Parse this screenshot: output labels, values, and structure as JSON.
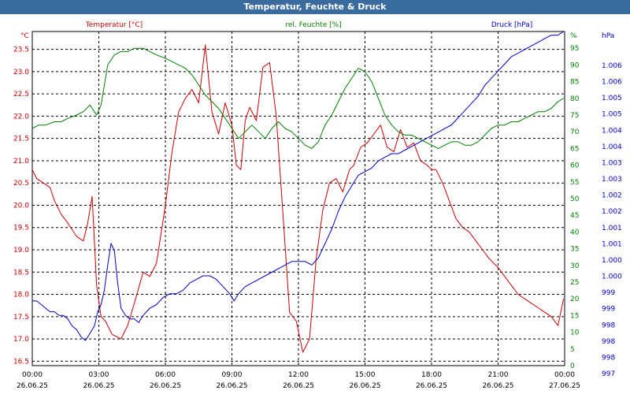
{
  "window": {
    "title": "Temperatur, Feuchte & Druck"
  },
  "colors": {
    "temperature": "#cc0000",
    "humidity": "#008000",
    "pressure": "#0000cc",
    "grid": "#000000",
    "titlebar": "#3a6b9e"
  },
  "chart_data": {
    "type": "line",
    "title": "Temperatur, Feuchte & Druck",
    "x_ticks": [
      {
        "time": "00:00",
        "date": "26.06.25"
      },
      {
        "time": "03:00",
        "date": "26.06.25"
      },
      {
        "time": "06:00",
        "date": "26.06.25"
      },
      {
        "time": "09:00",
        "date": "26.06.25"
      },
      {
        "time": "12:00",
        "date": "26.06.25"
      },
      {
        "time": "15:00",
        "date": "26.06.25"
      },
      {
        "time": "18:00",
        "date": "26.06.25"
      },
      {
        "time": "21:00",
        "date": "26.06.25"
      },
      {
        "time": "00:00",
        "date": "27.06.25"
      }
    ],
    "x_range_hours": [
      0,
      24
    ],
    "grid": true,
    "axes": {
      "temperature": {
        "label": "Temperatur [°C]",
        "unit": "°C",
        "range": [
          16.4,
          23.9
        ],
        "ticks": [
          "16.5",
          "17.0",
          "17.5",
          "18.0",
          "18.5",
          "19.0",
          "19.5",
          "20.0",
          "20.5",
          "21.0",
          "21.5",
          "22.0",
          "22.5",
          "23.0",
          "23.5"
        ]
      },
      "humidity": {
        "label": "rel. Feuchte [%]",
        "unit": "%",
        "range": [
          0,
          100
        ],
        "ticks": [
          "0",
          "5",
          "10",
          "15",
          "20",
          "25",
          "30",
          "35",
          "40",
          "45",
          "50",
          "55",
          "60",
          "65",
          "70",
          "75",
          "80",
          "85",
          "90",
          "95"
        ]
      },
      "pressure": {
        "label": "Druck [hPa]",
        "unit": "hPa",
        "range": [
          997,
          1006.3
        ],
        "ticks": [
          "997",
          "998",
          "998",
          "998",
          "999",
          "999",
          "1.000",
          "1.000",
          "1.001",
          "1.001",
          "1.002",
          "1.002",
          "1.003",
          "1.003",
          "1.004",
          "1.004",
          "1.005",
          "1.005",
          "1.006",
          "1.006"
        ]
      }
    },
    "series": [
      {
        "name": "Temperatur [°C]",
        "axis": "temperature",
        "x": [
          0,
          0.2,
          0.5,
          0.8,
          1.0,
          1.3,
          1.6,
          2.0,
          2.3,
          2.5,
          2.7,
          2.9,
          3.1,
          3.3,
          3.6,
          4.0,
          4.3,
          4.6,
          5.0,
          5.3,
          5.6,
          6.0,
          6.3,
          6.6,
          6.9,
          7.2,
          7.5,
          7.8,
          8.1,
          8.4,
          8.7,
          9.0,
          9.2,
          9.4,
          9.6,
          9.8,
          10.1,
          10.4,
          10.7,
          11.0,
          11.3,
          11.6,
          11.9,
          12.2,
          12.5,
          12.8,
          13.1,
          13.4,
          13.7,
          14.0,
          14.3,
          14.5,
          14.8,
          15.1,
          15.4,
          15.7,
          16.0,
          16.3,
          16.6,
          16.9,
          17.2,
          17.5,
          17.8,
          18.0,
          18.2,
          18.5,
          18.8,
          19.1,
          19.4,
          19.7,
          20.0,
          20.3,
          20.6,
          21.0,
          21.3,
          21.6,
          21.9,
          22.2,
          22.5,
          22.8,
          23.1,
          23.4,
          23.7,
          23.95
        ],
        "values": [
          20.8,
          20.6,
          20.5,
          20.4,
          20.1,
          19.8,
          19.6,
          19.3,
          19.2,
          19.6,
          20.2,
          18.2,
          17.5,
          17.4,
          17.1,
          17.0,
          17.3,
          17.8,
          18.5,
          18.4,
          18.7,
          20.0,
          21.2,
          22.1,
          22.4,
          22.6,
          22.3,
          23.6,
          22.1,
          21.6,
          22.3,
          21.8,
          20.9,
          20.8,
          21.9,
          22.2,
          21.9,
          23.1,
          23.2,
          22.0,
          19.8,
          17.6,
          17.4,
          16.7,
          17.0,
          18.8,
          19.9,
          20.5,
          20.6,
          20.3,
          20.8,
          20.9,
          21.3,
          21.4,
          21.6,
          21.8,
          21.3,
          21.2,
          21.7,
          21.3,
          21.4,
          21.0,
          20.9,
          20.8,
          20.8,
          20.5,
          20.1,
          19.7,
          19.5,
          19.4,
          19.2,
          19.0,
          18.8,
          18.6,
          18.4,
          18.2,
          18.0,
          17.9,
          17.8,
          17.7,
          17.6,
          17.5,
          17.3,
          17.9
        ]
      },
      {
        "name": "rel. Feuchte [%]",
        "axis": "humidity",
        "x": [
          0,
          0.3,
          0.6,
          1.0,
          1.3,
          1.6,
          2.0,
          2.3,
          2.6,
          2.9,
          3.1,
          3.4,
          3.7,
          4.0,
          4.3,
          4.6,
          5.0,
          5.3,
          5.6,
          6.0,
          6.3,
          6.6,
          6.9,
          7.2,
          7.5,
          7.8,
          8.1,
          8.4,
          8.7,
          9.0,
          9.3,
          9.6,
          9.9,
          10.2,
          10.5,
          10.8,
          11.1,
          11.4,
          11.7,
          12.0,
          12.3,
          12.6,
          12.9,
          13.2,
          13.5,
          13.8,
          14.1,
          14.4,
          14.7,
          15.0,
          15.3,
          15.6,
          15.9,
          16.2,
          16.5,
          16.8,
          17.1,
          17.4,
          17.7,
          18.0,
          18.3,
          18.6,
          18.9,
          19.2,
          19.5,
          19.8,
          20.1,
          20.4,
          20.7,
          21.0,
          21.3,
          21.6,
          21.9,
          22.2,
          22.5,
          22.8,
          23.1,
          23.4,
          23.7,
          23.95
        ],
        "values": [
          71,
          72,
          72,
          73,
          73,
          74,
          75,
          76,
          78,
          75,
          78,
          90,
          93,
          94,
          94,
          95,
          95,
          94,
          93,
          92,
          91,
          90,
          89,
          87,
          84,
          81,
          79,
          77,
          74,
          71,
          68,
          70,
          72,
          70,
          68,
          71,
          73,
          71,
          70,
          68,
          66,
          65,
          67,
          72,
          75,
          79,
          83,
          86,
          89,
          88,
          85,
          80,
          75,
          72,
          70,
          69,
          69,
          68,
          67,
          66,
          65,
          66,
          67,
          67,
          66,
          66,
          67,
          69,
          71,
          72,
          72,
          73,
          73,
          74,
          75,
          76,
          76,
          77,
          79,
          80
        ]
      },
      {
        "name": "Druck [hPa]",
        "axis": "pressure",
        "x": [
          0,
          0.2,
          0.4,
          0.6,
          0.8,
          1.0,
          1.2,
          1.4,
          1.6,
          1.8,
          2.0,
          2.2,
          2.4,
          2.6,
          2.8,
          2.95,
          3.1,
          3.25,
          3.4,
          3.55,
          3.7,
          3.85,
          4.0,
          4.2,
          4.4,
          4.6,
          4.8,
          5.0,
          5.3,
          5.6,
          5.9,
          6.2,
          6.5,
          6.8,
          7.1,
          7.4,
          7.7,
          8.0,
          8.3,
          8.6,
          8.9,
          9.1,
          9.3,
          9.6,
          9.9,
          10.2,
          10.5,
          10.8,
          11.1,
          11.4,
          11.7,
          12.0,
          12.3,
          12.6,
          12.9,
          13.2,
          13.5,
          13.8,
          14.1,
          14.4,
          14.7,
          15.0,
          15.3,
          15.6,
          15.9,
          16.2,
          16.5,
          16.8,
          17.1,
          17.4,
          17.7,
          18.0,
          18.3,
          18.6,
          18.9,
          19.2,
          19.5,
          19.8,
          20.1,
          20.4,
          20.7,
          21.0,
          21.3,
          21.6,
          21.9,
          22.2,
          22.5,
          22.8,
          23.1,
          23.4,
          23.7,
          23.95
        ],
        "values": [
          998.8,
          998.8,
          998.7,
          998.6,
          998.5,
          998.5,
          998.4,
          998.4,
          998.3,
          998.1,
          998.0,
          997.8,
          997.7,
          997.9,
          998.1,
          998.5,
          998.7,
          999.1,
          999.8,
          1000.4,
          1000.2,
          999.3,
          998.6,
          998.4,
          998.3,
          998.3,
          998.2,
          998.4,
          998.6,
          998.7,
          998.9,
          999.0,
          999.0,
          999.1,
          999.3,
          999.4,
          999.5,
          999.5,
          999.4,
          999.2,
          999.0,
          998.8,
          999.0,
          999.2,
          999.3,
          999.4,
          999.5,
          999.6,
          999.7,
          999.8,
          999.9,
          999.9,
          999.9,
          999.8,
          1000.0,
          1000.4,
          1000.8,
          1001.3,
          1001.7,
          1002.0,
          1002.3,
          1002.4,
          1002.5,
          1002.7,
          1002.8,
          1002.9,
          1002.9,
          1003.0,
          1003.1,
          1003.2,
          1003.3,
          1003.4,
          1003.5,
          1003.6,
          1003.7,
          1003.9,
          1004.1,
          1004.3,
          1004.5,
          1004.8,
          1005.0,
          1005.2,
          1005.4,
          1005.6,
          1005.7,
          1005.8,
          1005.9,
          1006.0,
          1006.1,
          1006.2,
          1006.2,
          1006.3
        ]
      }
    ]
  }
}
